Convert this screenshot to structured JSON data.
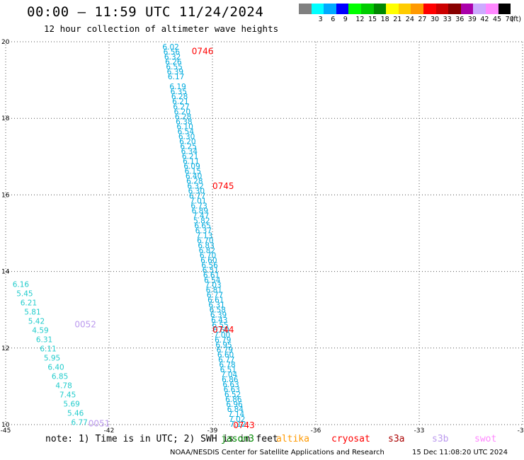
{
  "header": {
    "title": "00:00 – 11:59 UTC 11/24/2024",
    "subtitle": "12 hour collection of altimeter wave heights"
  },
  "legend": {
    "unit": "(ft)",
    "items": [
      {
        "label": "",
        "color": "#808080"
      },
      {
        "label": "3",
        "color": "#00ffff"
      },
      {
        "label": "6",
        "color": "#00aaff"
      },
      {
        "label": "9",
        "color": "#0000ff"
      },
      {
        "label": "12",
        "color": "#00ff00"
      },
      {
        "label": "15",
        "color": "#00cc00"
      },
      {
        "label": "18",
        "color": "#008800"
      },
      {
        "label": "21",
        "color": "#ffff00"
      },
      {
        "label": "24",
        "color": "#ffcc00"
      },
      {
        "label": "27",
        "color": "#ff9900"
      },
      {
        "label": "30",
        "color": "#ff0000"
      },
      {
        "label": "33",
        "color": "#cc0000"
      },
      {
        "label": "36",
        "color": "#880000"
      },
      {
        "label": "39",
        "color": "#aa00aa"
      },
      {
        "label": "42",
        "color": "#ccaaff"
      },
      {
        "label": "45",
        "color": "#ff88ff"
      },
      {
        "label": "70",
        "color": "#000000"
      }
    ]
  },
  "map": {
    "lon_range": [
      -45,
      -30
    ],
    "lat_range": [
      10,
      20
    ],
    "x_ticks": [
      {
        "value": -45,
        "label": "-45"
      },
      {
        "value": -42,
        "label": "-42"
      },
      {
        "value": -39,
        "label": "-39"
      },
      {
        "value": -36,
        "label": "-36"
      },
      {
        "value": -33,
        "label": "-33"
      },
      {
        "value": -30,
        "label": "-30"
      }
    ],
    "y_ticks": [
      {
        "value": 10,
        "label": "10"
      },
      {
        "value": 12,
        "label": "12"
      },
      {
        "value": 14,
        "label": "14"
      },
      {
        "value": 16,
        "label": "16"
      },
      {
        "value": 18,
        "label": "18"
      },
      {
        "value": 20,
        "label": "20"
      }
    ],
    "grid": true,
    "tracks": [
      {
        "pass": "A",
        "color": "#00aadd",
        "start_lon": -40.45,
        "end_lon": -38.5,
        "start_lat": 19.85,
        "end_lat": 10.0,
        "labels": [
          "6.02",
          "6.56",
          "6.32",
          "6.26",
          "6.55",
          "6.39",
          "6.17",
          "",
          "6.19",
          "6.35",
          "6.28",
          "6.21",
          "6.27",
          "6.20",
          "6.28",
          "6.38",
          "6.10",
          "6.54",
          "6.30",
          "6.20",
          "6.25",
          "6.34",
          "6.21",
          "6.11",
          "6.09",
          "6.15",
          "6.40",
          "6.28",
          "6.32",
          "6.30",
          "6.77",
          "7.01",
          "6.73",
          "6.89",
          "7.47",
          "5.82",
          "6.65",
          "6.37",
          "7.13",
          "6.70",
          "6.83",
          "6.82",
          "6.70",
          "6.60",
          "6.56",
          "6.51",
          "6.61",
          "6.54",
          "7.03",
          "6.81",
          "6.77",
          "6.61",
          "6.31",
          "6.58",
          "6.39",
          "6.43",
          "6.55",
          "6.60",
          "7.00",
          "6.79",
          "6.95",
          "6.79",
          "6.60",
          "6.77",
          "6.78",
          "6.51",
          "7.04",
          "6.86",
          "6.63",
          "6.63",
          "6.52",
          "6.86",
          "6.96",
          "6.84",
          "7.14",
          "7.02",
          "7.12"
        ]
      },
      {
        "pass": "B",
        "color": "#22cccc",
        "start_lon": -44.8,
        "end_lon": -43.1,
        "start_lat": 13.65,
        "end_lat": 10.05,
        "labels": [
          "6.16",
          "5.45",
          "6.21",
          "5.81",
          "5.42",
          "4.59",
          "6.31",
          "6.11",
          "5.95",
          "6.40",
          "6.85",
          "4.78",
          "7.45",
          "5.69",
          "5.46",
          "6.77"
        ]
      }
    ],
    "time_labels": [
      {
        "text": "0746",
        "lon": -39.6,
        "lat": 19.77,
        "color": "#ff0000"
      },
      {
        "text": "0745",
        "lon": -39.0,
        "lat": 16.25,
        "color": "#ff0000"
      },
      {
        "text": "0744",
        "lon": -39.0,
        "lat": 12.5,
        "color": "#ff0000"
      },
      {
        "text": "0743",
        "lon": -38.4,
        "lat": 10.0,
        "color": "#ff0000"
      },
      {
        "text": "0052",
        "lon": -43.0,
        "lat": 12.63,
        "color": "#bb99ee"
      },
      {
        "text": "0051",
        "lon": -42.6,
        "lat": 10.05,
        "color": "#bb99ee"
      }
    ]
  },
  "footer": {
    "note": "note: 1) Time is in UTC; 2) SWH is in feet",
    "satellites": [
      {
        "name": "jason3",
        "color": "#008800"
      },
      {
        "name": "altika",
        "color": "#ff9900"
      },
      {
        "name": "cryosat",
        "color": "#ff0000"
      },
      {
        "name": "s3a",
        "color": "#aa0000"
      },
      {
        "name": "s3b",
        "color": "#bb99ee"
      },
      {
        "name": "swot",
        "color": "#ff88ff"
      }
    ],
    "credit": "NOAA/NESDIS Center for Satellite Applications and Research",
    "generated": "15 Dec 11:08:20 UTC 2024"
  }
}
